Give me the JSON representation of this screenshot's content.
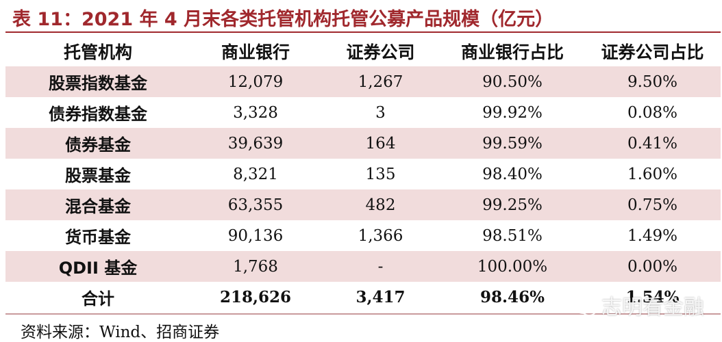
{
  "title": "表 11：2021 年 4 月末各类托管机构托管公募产品规模（亿元）",
  "table": {
    "headers": [
      "托管机构",
      "商业银行",
      "证券公司",
      "商业银行占比",
      "证券公司占比"
    ],
    "rows": [
      [
        "股票指数基金",
        "12,079",
        "1,267",
        "90.50%",
        "9.50%"
      ],
      [
        "债券指数基金",
        "3,328",
        "3",
        "99.92%",
        "0.08%"
      ],
      [
        "债券基金",
        "39,639",
        "164",
        "99.59%",
        "0.41%"
      ],
      [
        "股票基金",
        "8,321",
        "135",
        "98.40%",
        "1.60%"
      ],
      [
        "混合基金",
        "63,355",
        "482",
        "99.25%",
        "0.75%"
      ],
      [
        "货币基金",
        "90,136",
        "1,366",
        "98.51%",
        "1.49%"
      ],
      [
        "QDII 基金",
        "1,768",
        "-",
        "100.00%",
        "0.00%"
      ]
    ],
    "total": [
      "合计",
      "218,626",
      "3,417",
      "98.46%",
      "1.54%"
    ]
  },
  "source": "资料来源：Wind、招商证券",
  "watermark": "志明看金融",
  "colors": {
    "title": "#a0282d",
    "row_shade": "#f1dcdc"
  }
}
